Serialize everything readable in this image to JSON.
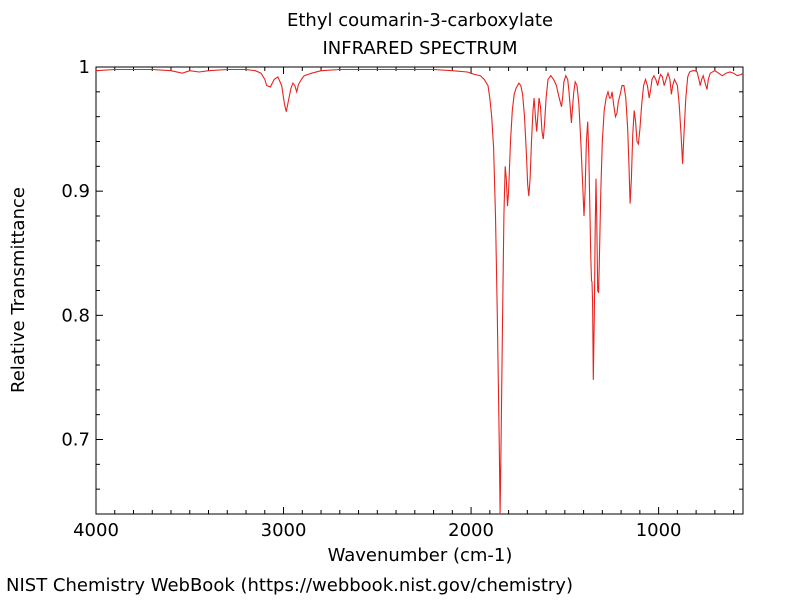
{
  "chart_data": {
    "type": "line",
    "title": "Ethyl coumarin-3-carboxylate",
    "subtitle": "INFRARED SPECTRUM",
    "xlabel": "Wavenumber (cm-1)",
    "ylabel": "Relative Transmittance",
    "xlim": [
      4000,
      550
    ],
    "ylim": [
      0.64,
      1.0
    ],
    "x_ticks": [
      4000,
      3000,
      2000,
      1000
    ],
    "y_ticks": [
      0.7,
      0.8,
      0.9,
      1
    ],
    "grid": false,
    "series": [
      {
        "color": "#e8231f",
        "points": [
          [
            4000,
            0.997
          ],
          [
            3900,
            0.998
          ],
          [
            3800,
            0.998
          ],
          [
            3700,
            0.998
          ],
          [
            3600,
            0.997
          ],
          [
            3540,
            0.995
          ],
          [
            3500,
            0.997
          ],
          [
            3450,
            0.996
          ],
          [
            3400,
            0.997
          ],
          [
            3300,
            0.998
          ],
          [
            3200,
            0.998
          ],
          [
            3150,
            0.997
          ],
          [
            3120,
            0.995
          ],
          [
            3100,
            0.99
          ],
          [
            3090,
            0.985
          ],
          [
            3070,
            0.984
          ],
          [
            3050,
            0.99
          ],
          [
            3030,
            0.992
          ],
          [
            3010,
            0.985
          ],
          [
            2995,
            0.97
          ],
          [
            2985,
            0.964
          ],
          [
            2975,
            0.972
          ],
          [
            2960,
            0.983
          ],
          [
            2950,
            0.987
          ],
          [
            2940,
            0.985
          ],
          [
            2930,
            0.98
          ],
          [
            2920,
            0.986
          ],
          [
            2905,
            0.99
          ],
          [
            2890,
            0.993
          ],
          [
            2870,
            0.994
          ],
          [
            2850,
            0.995
          ],
          [
            2800,
            0.997
          ],
          [
            2700,
            0.998
          ],
          [
            2600,
            0.998
          ],
          [
            2500,
            0.998
          ],
          [
            2400,
            0.998
          ],
          [
            2300,
            0.998
          ],
          [
            2200,
            0.998
          ],
          [
            2100,
            0.997
          ],
          [
            2020,
            0.996
          ],
          [
            1980,
            0.994
          ],
          [
            1950,
            0.993
          ],
          [
            1930,
            0.99
          ],
          [
            1910,
            0.985
          ],
          [
            1900,
            0.975
          ],
          [
            1890,
            0.96
          ],
          [
            1880,
            0.935
          ],
          [
            1870,
            0.88
          ],
          [
            1860,
            0.8
          ],
          [
            1850,
            0.7
          ],
          [
            1845,
            0.64
          ],
          [
            1840,
            0.7
          ],
          [
            1832,
            0.8
          ],
          [
            1825,
            0.88
          ],
          [
            1818,
            0.92
          ],
          [
            1812,
            0.91
          ],
          [
            1806,
            0.888
          ],
          [
            1800,
            0.9
          ],
          [
            1790,
            0.94
          ],
          [
            1780,
            0.965
          ],
          [
            1770,
            0.978
          ],
          [
            1760,
            0.983
          ],
          [
            1745,
            0.987
          ],
          [
            1735,
            0.985
          ],
          [
            1725,
            0.978
          ],
          [
            1715,
            0.96
          ],
          [
            1705,
            0.93
          ],
          [
            1698,
            0.905
          ],
          [
            1692,
            0.896
          ],
          [
            1685,
            0.91
          ],
          [
            1678,
            0.94
          ],
          [
            1670,
            0.965
          ],
          [
            1664,
            0.975
          ],
          [
            1657,
            0.96
          ],
          [
            1650,
            0.948
          ],
          [
            1645,
            0.958
          ],
          [
            1638,
            0.975
          ],
          [
            1630,
            0.968
          ],
          [
            1622,
            0.948
          ],
          [
            1615,
            0.942
          ],
          [
            1608,
            0.955
          ],
          [
            1600,
            0.975
          ],
          [
            1590,
            0.99
          ],
          [
            1575,
            0.993
          ],
          [
            1560,
            0.99
          ],
          [
            1545,
            0.985
          ],
          [
            1535,
            0.978
          ],
          [
            1525,
            0.972
          ],
          [
            1518,
            0.968
          ],
          [
            1512,
            0.975
          ],
          [
            1505,
            0.988
          ],
          [
            1495,
            0.993
          ],
          [
            1485,
            0.99
          ],
          [
            1478,
            0.98
          ],
          [
            1470,
            0.965
          ],
          [
            1465,
            0.955
          ],
          [
            1460,
            0.965
          ],
          [
            1452,
            0.98
          ],
          [
            1445,
            0.988
          ],
          [
            1435,
            0.985
          ],
          [
            1425,
            0.97
          ],
          [
            1415,
            0.94
          ],
          [
            1405,
            0.905
          ],
          [
            1398,
            0.88
          ],
          [
            1392,
            0.9
          ],
          [
            1385,
            0.94
          ],
          [
            1378,
            0.956
          ],
          [
            1372,
            0.93
          ],
          [
            1366,
            0.88
          ],
          [
            1362,
            0.85
          ],
          [
            1358,
            0.828
          ],
          [
            1355,
            0.827
          ],
          [
            1352,
            0.81
          ],
          [
            1348,
            0.748
          ],
          [
            1343,
            0.8
          ],
          [
            1338,
            0.87
          ],
          [
            1334,
            0.91
          ],
          [
            1330,
            0.88
          ],
          [
            1325,
            0.82
          ],
          [
            1320,
            0.818
          ],
          [
            1315,
            0.85
          ],
          [
            1308,
            0.9
          ],
          [
            1300,
            0.94
          ],
          [
            1290,
            0.965
          ],
          [
            1280,
            0.975
          ],
          [
            1270,
            0.98
          ],
          [
            1262,
            0.975
          ],
          [
            1255,
            0.975
          ],
          [
            1248,
            0.98
          ],
          [
            1240,
            0.97
          ],
          [
            1230,
            0.96
          ],
          [
            1222,
            0.963
          ],
          [
            1215,
            0.972
          ],
          [
            1205,
            0.978
          ],
          [
            1195,
            0.985
          ],
          [
            1185,
            0.985
          ],
          [
            1175,
            0.975
          ],
          [
            1165,
            0.95
          ],
          [
            1158,
            0.92
          ],
          [
            1152,
            0.89
          ],
          [
            1145,
            0.91
          ],
          [
            1138,
            0.945
          ],
          [
            1130,
            0.965
          ],
          [
            1122,
            0.955
          ],
          [
            1115,
            0.94
          ],
          [
            1108,
            0.938
          ],
          [
            1100,
            0.95
          ],
          [
            1090,
            0.97
          ],
          [
            1080,
            0.985
          ],
          [
            1070,
            0.99
          ],
          [
            1060,
            0.985
          ],
          [
            1050,
            0.975
          ],
          [
            1042,
            0.982
          ],
          [
            1035,
            0.99
          ],
          [
            1025,
            0.993
          ],
          [
            1015,
            0.99
          ],
          [
            1005,
            0.985
          ],
          [
            998,
            0.99
          ],
          [
            990,
            0.994
          ],
          [
            980,
            0.992
          ],
          [
            970,
            0.985
          ],
          [
            960,
            0.99
          ],
          [
            950,
            0.995
          ],
          [
            940,
            0.99
          ],
          [
            932,
            0.978
          ],
          [
            925,
            0.985
          ],
          [
            915,
            0.99
          ],
          [
            900,
            0.985
          ],
          [
            890,
            0.97
          ],
          [
            880,
            0.945
          ],
          [
            872,
            0.922
          ],
          [
            865,
            0.945
          ],
          [
            855,
            0.975
          ],
          [
            845,
            0.992
          ],
          [
            835,
            0.996
          ],
          [
            820,
            0.997
          ],
          [
            805,
            0.997
          ],
          [
            795,
            0.996
          ],
          [
            785,
            0.99
          ],
          [
            778,
            0.985
          ],
          [
            770,
            0.99
          ],
          [
            762,
            0.993
          ],
          [
            750,
            0.986
          ],
          [
            742,
            0.982
          ],
          [
            735,
            0.99
          ],
          [
            725,
            0.995
          ],
          [
            700,
            0.997
          ],
          [
            680,
            0.995
          ],
          [
            660,
            0.993
          ],
          [
            640,
            0.995
          ],
          [
            620,
            0.996
          ],
          [
            600,
            0.995
          ],
          [
            580,
            0.993
          ],
          [
            560,
            0.994
          ],
          [
            550,
            0.995
          ]
        ]
      }
    ]
  },
  "footer": "NIST Chemistry WebBook (https://webbook.nist.gov/chemistry)"
}
